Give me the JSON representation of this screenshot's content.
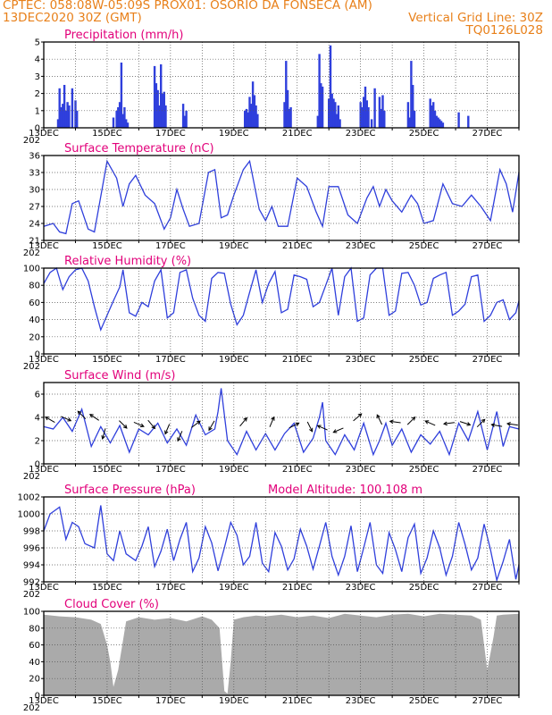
{
  "header": {
    "line1": "CPTEC:   058:08W-05:09S   PROX01: OSORIO DA FONSECA (AM)",
    "line2_left": "13DEC2020 30Z (GMT)",
    "line2_right": "Vertical Grid Line: 30Z",
    "line3_right": "TQ0126L028"
  },
  "colors": {
    "accent": "#e8801a",
    "title": "#e2007a",
    "series": "#2f3fdc",
    "cloud": "#aaaaaa"
  },
  "axis_year_fragment": "202",
  "date_labels": [
    "13DEC",
    "15DEC",
    "17DEC",
    "19DEC",
    "21DEC",
    "23DEC",
    "25DEC",
    "27DEC"
  ],
  "chart_data": [
    {
      "type": "bar",
      "title": "Precipitation (mm/h)",
      "ylim": [
        0,
        5
      ],
      "yticks": [
        0,
        1,
        2,
        3,
        4,
        5
      ],
      "x": [
        0.45,
        0.5,
        0.55,
        0.6,
        0.65,
        0.7,
        0.75,
        0.8,
        0.9,
        1.0,
        1.05,
        2.2,
        2.3,
        2.35,
        2.4,
        2.45,
        2.5,
        2.55,
        2.6,
        2.65,
        3.5,
        3.55,
        3.6,
        3.65,
        3.7,
        3.75,
        3.8,
        3.85,
        4.4,
        4.45,
        4.5,
        6.35,
        6.4,
        6.45,
        6.5,
        6.55,
        6.6,
        6.65,
        6.7,
        6.75,
        7.6,
        7.65,
        7.7,
        7.75,
        7.8,
        8.65,
        8.7,
        8.75,
        8.8,
        9.0,
        9.05,
        9.1,
        9.15,
        9.2,
        9.25,
        9.3,
        9.35,
        10.0,
        10.05,
        10.1,
        10.15,
        10.2,
        10.25,
        10.35,
        10.45,
        10.6,
        10.65,
        10.7,
        10.75,
        11.5,
        11.55,
        11.6,
        11.65,
        11.7,
        12.2,
        12.25,
        12.3,
        12.35,
        12.4,
        12.45,
        12.5,
        12.55,
        12.6,
        13.1,
        13.4
      ],
      "values": [
        0.5,
        2.3,
        1.2,
        1.4,
        2.5,
        1.0,
        1.5,
        1.3,
        2.3,
        1.6,
        1.0,
        0.6,
        1.0,
        1.2,
        1.5,
        3.8,
        0.8,
        1.2,
        0.5,
        0.3,
        3.6,
        2.6,
        2.2,
        1.3,
        3.7,
        2.0,
        2.1,
        1.3,
        1.4,
        0.7,
        1.0,
        1.0,
        1.1,
        0.9,
        1.8,
        1.4,
        2.7,
        1.9,
        1.3,
        0.8,
        1.5,
        3.9,
        2.2,
        1.1,
        1.2,
        0.7,
        4.3,
        2.6,
        2.4,
        1.7,
        4.8,
        2.0,
        1.7,
        1.5,
        0.8,
        1.3,
        0.5,
        1.5,
        1.2,
        1.8,
        2.4,
        1.6,
        1.2,
        0.5,
        2.3,
        1.8,
        1.1,
        1.9,
        1.0,
        1.5,
        0.6,
        3.9,
        2.5,
        1.0,
        1.7,
        1.3,
        1.5,
        1.0,
        0.7,
        0.6,
        0.5,
        0.4,
        0.3,
        0.9,
        0.7
      ]
    },
    {
      "type": "line",
      "title": "Surface Temperature (nC)",
      "ylim": [
        21,
        36
      ],
      "yticks": [
        21,
        24,
        27,
        30,
        33,
        36
      ],
      "x": [
        0,
        0.3,
        0.5,
        0.7,
        0.9,
        1.1,
        1.4,
        1.6,
        2.0,
        2.3,
        2.5,
        2.7,
        2.9,
        3.2,
        3.5,
        3.8,
        4.0,
        4.2,
        4.4,
        4.6,
        4.9,
        5.2,
        5.4,
        5.6,
        5.8,
        6.0,
        6.3,
        6.5,
        6.8,
        7.0,
        7.2,
        7.4,
        7.7,
        8.0,
        8.3,
        8.6,
        8.8,
        9.0,
        9.3,
        9.6,
        9.9,
        10.2,
        10.4,
        10.6,
        10.8,
        11.0,
        11.3,
        11.6,
        11.8,
        12.0,
        12.3,
        12.6,
        12.9,
        13.2,
        13.5,
        13.8,
        14.1,
        14.4,
        14.6,
        14.8,
        15.0
      ],
      "y": [
        23.5,
        24,
        22.5,
        22.2,
        27.5,
        28,
        23,
        22.5,
        35,
        32,
        27,
        31,
        32.5,
        29,
        27.5,
        23,
        25,
        30,
        26.5,
        23.5,
        24,
        33,
        33.5,
        25,
        25.5,
        29,
        33.5,
        35,
        26.5,
        24.5,
        27,
        23.5,
        23.5,
        32,
        30.5,
        26,
        23.5,
        30.5,
        30.5,
        25.5,
        24,
        28.5,
        30.5,
        27,
        30,
        28,
        26,
        29,
        27.5,
        24,
        24.5,
        31,
        27.5,
        27,
        29,
        27,
        24.5,
        33.5,
        31,
        26,
        33
      ]
    },
    {
      "type": "line",
      "title": "Relative Humidity (%)",
      "ylim": [
        0,
        100
      ],
      "yticks": [
        0,
        20,
        40,
        60,
        80,
        100
      ],
      "x": [
        0,
        0.2,
        0.4,
        0.6,
        0.8,
        1.0,
        1.2,
        1.4,
        1.6,
        1.8,
        2.0,
        2.2,
        2.4,
        2.5,
        2.7,
        2.9,
        3.1,
        3.3,
        3.5,
        3.7,
        3.9,
        4.1,
        4.3,
        4.5,
        4.7,
        4.9,
        5.1,
        5.3,
        5.5,
        5.7,
        5.9,
        6.1,
        6.3,
        6.5,
        6.7,
        6.9,
        7.1,
        7.3,
        7.5,
        7.7,
        7.9,
        8.1,
        8.3,
        8.5,
        8.7,
        8.9,
        9.1,
        9.3,
        9.5,
        9.7,
        9.9,
        10.1,
        10.3,
        10.5,
        10.7,
        10.9,
        11.1,
        11.3,
        11.5,
        11.7,
        11.9,
        12.1,
        12.3,
        12.5,
        12.7,
        12.9,
        13.1,
        13.3,
        13.5,
        13.7,
        13.9,
        14.1,
        14.3,
        14.5,
        14.7,
        14.9,
        15.0
      ],
      "y": [
        82,
        95,
        100,
        75,
        90,
        98,
        100,
        85,
        55,
        28,
        45,
        62,
        78,
        98,
        48,
        44,
        60,
        55,
        85,
        98,
        42,
        48,
        95,
        98,
        65,
        45,
        38,
        88,
        95,
        94,
        58,
        34,
        45,
        72,
        98,
        60,
        82,
        96,
        48,
        52,
        92,
        90,
        87,
        55,
        60,
        80,
        100,
        45,
        90,
        100,
        38,
        42,
        92,
        100,
        100,
        45,
        50,
        94,
        95,
        80,
        57,
        60,
        88,
        92,
        95,
        45,
        50,
        58,
        90,
        92,
        38,
        45,
        60,
        63,
        40,
        48,
        62
      ]
    },
    {
      "type": "line",
      "title": "Surface Wind (m/s)",
      "ylim": [
        0,
        7
      ],
      "yticks": [
        0,
        2,
        4,
        6
      ],
      "x": [
        0,
        0.3,
        0.6,
        0.9,
        1.2,
        1.5,
        1.8,
        2.1,
        2.4,
        2.7,
        3.0,
        3.3,
        3.6,
        3.9,
        4.2,
        4.5,
        4.8,
        5.1,
        5.4,
        5.5,
        5.6,
        5.8,
        6.1,
        6.4,
        6.7,
        7.0,
        7.3,
        7.6,
        7.9,
        8.2,
        8.5,
        8.7,
        8.8,
        8.9,
        9.2,
        9.5,
        9.8,
        10.1,
        10.4,
        10.6,
        10.8,
        11.0,
        11.3,
        11.6,
        11.9,
        12.2,
        12.5,
        12.8,
        13.1,
        13.4,
        13.7,
        14.0,
        14.3,
        14.5,
        14.7,
        15.0
      ],
      "y": [
        3.2,
        3.0,
        4.0,
        2.8,
        4.7,
        1.5,
        3.2,
        1.8,
        3.3,
        1.0,
        3.0,
        2.5,
        3.5,
        1.8,
        3.0,
        1.6,
        4.2,
        2.5,
        3.0,
        4.5,
        6.5,
        2.0,
        0.8,
        2.8,
        1.2,
        2.6,
        1.2,
        2.6,
        3.5,
        1.0,
        2.2,
        4.0,
        5.3,
        2.0,
        0.8,
        2.5,
        1.2,
        3.5,
        0.8,
        2.0,
        3.5,
        1.6,
        3.0,
        1.0,
        2.5,
        1.7,
        2.8,
        0.8,
        3.5,
        2.0,
        4.5,
        1.2,
        4.5,
        1.5,
        3.2,
        3.0
      ],
      "arrows": [
        {
          "x": 0.2,
          "y": 3.8,
          "u": -0.7,
          "v": 0.4
        },
        {
          "x": 0.7,
          "y": 3.9,
          "u": 0.7,
          "v": -0.3
        },
        {
          "x": 1.2,
          "y": 4.2,
          "u": -0.5,
          "v": 0.5
        },
        {
          "x": 1.6,
          "y": 4.0,
          "u": -0.6,
          "v": 0.4
        },
        {
          "x": 1.9,
          "y": 2.6,
          "u": -0.2,
          "v": -0.7
        },
        {
          "x": 2.5,
          "y": 3.4,
          "u": 0.5,
          "v": -0.5
        },
        {
          "x": 3.0,
          "y": 3.4,
          "u": 0.7,
          "v": -0.3
        },
        {
          "x": 3.4,
          "y": 3.4,
          "u": 0.5,
          "v": -0.6
        },
        {
          "x": 3.9,
          "y": 3.0,
          "u": -0.3,
          "v": -0.7
        },
        {
          "x": 4.3,
          "y": 2.4,
          "u": -0.3,
          "v": -0.7
        },
        {
          "x": 4.8,
          "y": 3.4,
          "u": 0.4,
          "v": 0.3
        },
        {
          "x": 5.3,
          "y": 3.3,
          "u": -0.4,
          "v": -0.7
        },
        {
          "x": 6.3,
          "y": 3.6,
          "u": 0.5,
          "v": 0.6
        },
        {
          "x": 7.2,
          "y": 3.6,
          "u": 0.3,
          "v": 0.7
        },
        {
          "x": 7.9,
          "y": 3.3,
          "u": 0.6,
          "v": 0.3
        },
        {
          "x": 8.4,
          "y": 3.2,
          "u": 0.3,
          "v": -0.6
        },
        {
          "x": 8.8,
          "y": 3.1,
          "u": -0.7,
          "v": 0.3
        },
        {
          "x": 9.3,
          "y": 2.9,
          "u": -0.7,
          "v": -0.3
        },
        {
          "x": 9.9,
          "y": 4.0,
          "u": 0.7,
          "v": 0.6
        },
        {
          "x": 10.6,
          "y": 3.8,
          "u": -0.3,
          "v": 0.6
        },
        {
          "x": 11.1,
          "y": 3.6,
          "u": -0.7,
          "v": 0.1
        },
        {
          "x": 11.6,
          "y": 3.7,
          "u": 0.4,
          "v": 0.4
        },
        {
          "x": 12.2,
          "y": 3.5,
          "u": -0.7,
          "v": 0.3
        },
        {
          "x": 12.8,
          "y": 3.5,
          "u": -0.7,
          "v": -0.1
        },
        {
          "x": 13.3,
          "y": 3.5,
          "u": 0.6,
          "v": -0.2
        },
        {
          "x": 13.8,
          "y": 3.5,
          "u": 0.5,
          "v": 0.5
        },
        {
          "x": 14.3,
          "y": 3.3,
          "u": -0.6,
          "v": 0.1
        },
        {
          "x": 14.8,
          "y": 3.4,
          "u": -0.7,
          "v": 0.1
        }
      ]
    },
    {
      "type": "line",
      "title": "Surface Pressure (hPa)",
      "subtitle": "Model Altitude: 100.108 m",
      "ylim": [
        992,
        1002
      ],
      "yticks": [
        992,
        994,
        996,
        998,
        1000,
        1002
      ],
      "x": [
        0,
        0.2,
        0.5,
        0.7,
        0.9,
        1.1,
        1.3,
        1.6,
        1.8,
        2.0,
        2.2,
        2.4,
        2.6,
        2.9,
        3.1,
        3.3,
        3.5,
        3.7,
        3.9,
        4.1,
        4.3,
        4.5,
        4.7,
        4.9,
        5.1,
        5.3,
        5.5,
        5.7,
        5.9,
        6.1,
        6.3,
        6.5,
        6.7,
        6.9,
        7.1,
        7.3,
        7.5,
        7.7,
        7.9,
        8.1,
        8.3,
        8.5,
        8.7,
        8.9,
        9.1,
        9.3,
        9.5,
        9.7,
        9.9,
        10.1,
        10.3,
        10.5,
        10.7,
        10.9,
        11.1,
        11.3,
        11.5,
        11.7,
        11.9,
        12.1,
        12.3,
        12.5,
        12.7,
        12.9,
        13.1,
        13.3,
        13.5,
        13.7,
        13.9,
        14.1,
        14.3,
        14.5,
        14.7,
        14.9,
        15.0
      ],
      "y": [
        998,
        1000,
        1000.8,
        997,
        999,
        998.5,
        996.5,
        996,
        1001,
        995.3,
        994.5,
        998,
        995.3,
        994.5,
        996.2,
        998.5,
        993.8,
        995.6,
        998.2,
        994.5,
        997,
        999,
        993.2,
        994.8,
        998.5,
        996.6,
        993.3,
        996,
        999,
        997.5,
        994,
        995,
        999,
        994.2,
        993.2,
        997.8,
        996.2,
        993.4,
        994.7,
        998.2,
        996.2,
        993.5,
        996.2,
        999,
        995,
        992.8,
        995,
        998.6,
        993.2,
        996,
        999,
        994,
        993,
        997.8,
        995.8,
        993.2,
        997.2,
        998.8,
        993,
        994.8,
        998,
        996,
        992.8,
        995,
        999,
        996.4,
        993.4,
        994.8,
        998.8,
        995.8,
        992.2,
        994.4,
        997,
        992.3,
        994
      ]
    },
    {
      "type": "area",
      "title": "Cloud Cover (%)",
      "ylim": [
        0,
        100
      ],
      "yticks": [
        0,
        20,
        40,
        60,
        80,
        100
      ],
      "x": [
        0,
        0.5,
        1.0,
        1.5,
        1.8,
        2.0,
        2.1,
        2.2,
        2.35,
        2.6,
        3.0,
        3.5,
        4.0,
        4.5,
        5.0,
        5.3,
        5.55,
        5.7,
        5.8,
        5.9,
        6.0,
        6.3,
        6.7,
        7.0,
        7.5,
        8.0,
        8.5,
        9.0,
        9.5,
        10.0,
        10.5,
        11.0,
        11.5,
        12.0,
        12.5,
        13.0,
        13.5,
        13.8,
        13.9,
        14.0,
        14.1,
        14.2,
        14.3,
        14.5,
        15.0
      ],
      "y": [
        96,
        94,
        93,
        90,
        85,
        60,
        40,
        10,
        30,
        88,
        93,
        90,
        92,
        88,
        94,
        90,
        80,
        5,
        2,
        40,
        90,
        93,
        95,
        94,
        96,
        93,
        95,
        92,
        97,
        95,
        93,
        96,
        97,
        94,
        97,
        96,
        95,
        90,
        60,
        30,
        50,
        70,
        95,
        96,
        97
      ]
    }
  ]
}
